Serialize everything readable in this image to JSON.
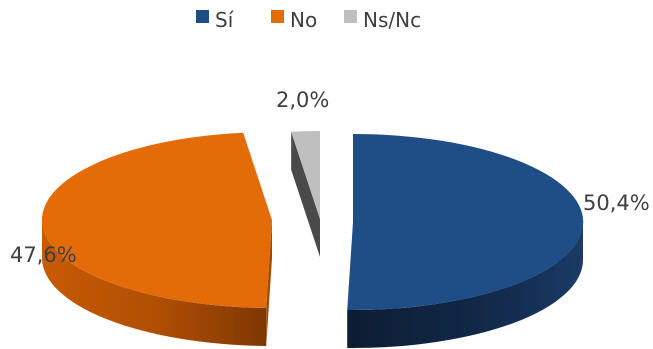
{
  "chart_data": {
    "type": "pie",
    "style": "3d-exploded",
    "title": "",
    "legend_position": "top",
    "series": [
      {
        "name": "Sí",
        "value": 50.4,
        "label": "50,4%",
        "color": "#1f4e87"
      },
      {
        "name": "No",
        "value": 47.6,
        "label": "47,6%",
        "color": "#e36c09"
      },
      {
        "name": "Ns/Nc",
        "value": 2.0,
        "label": "2,0%",
        "color": "#bfbfbf"
      }
    ]
  }
}
